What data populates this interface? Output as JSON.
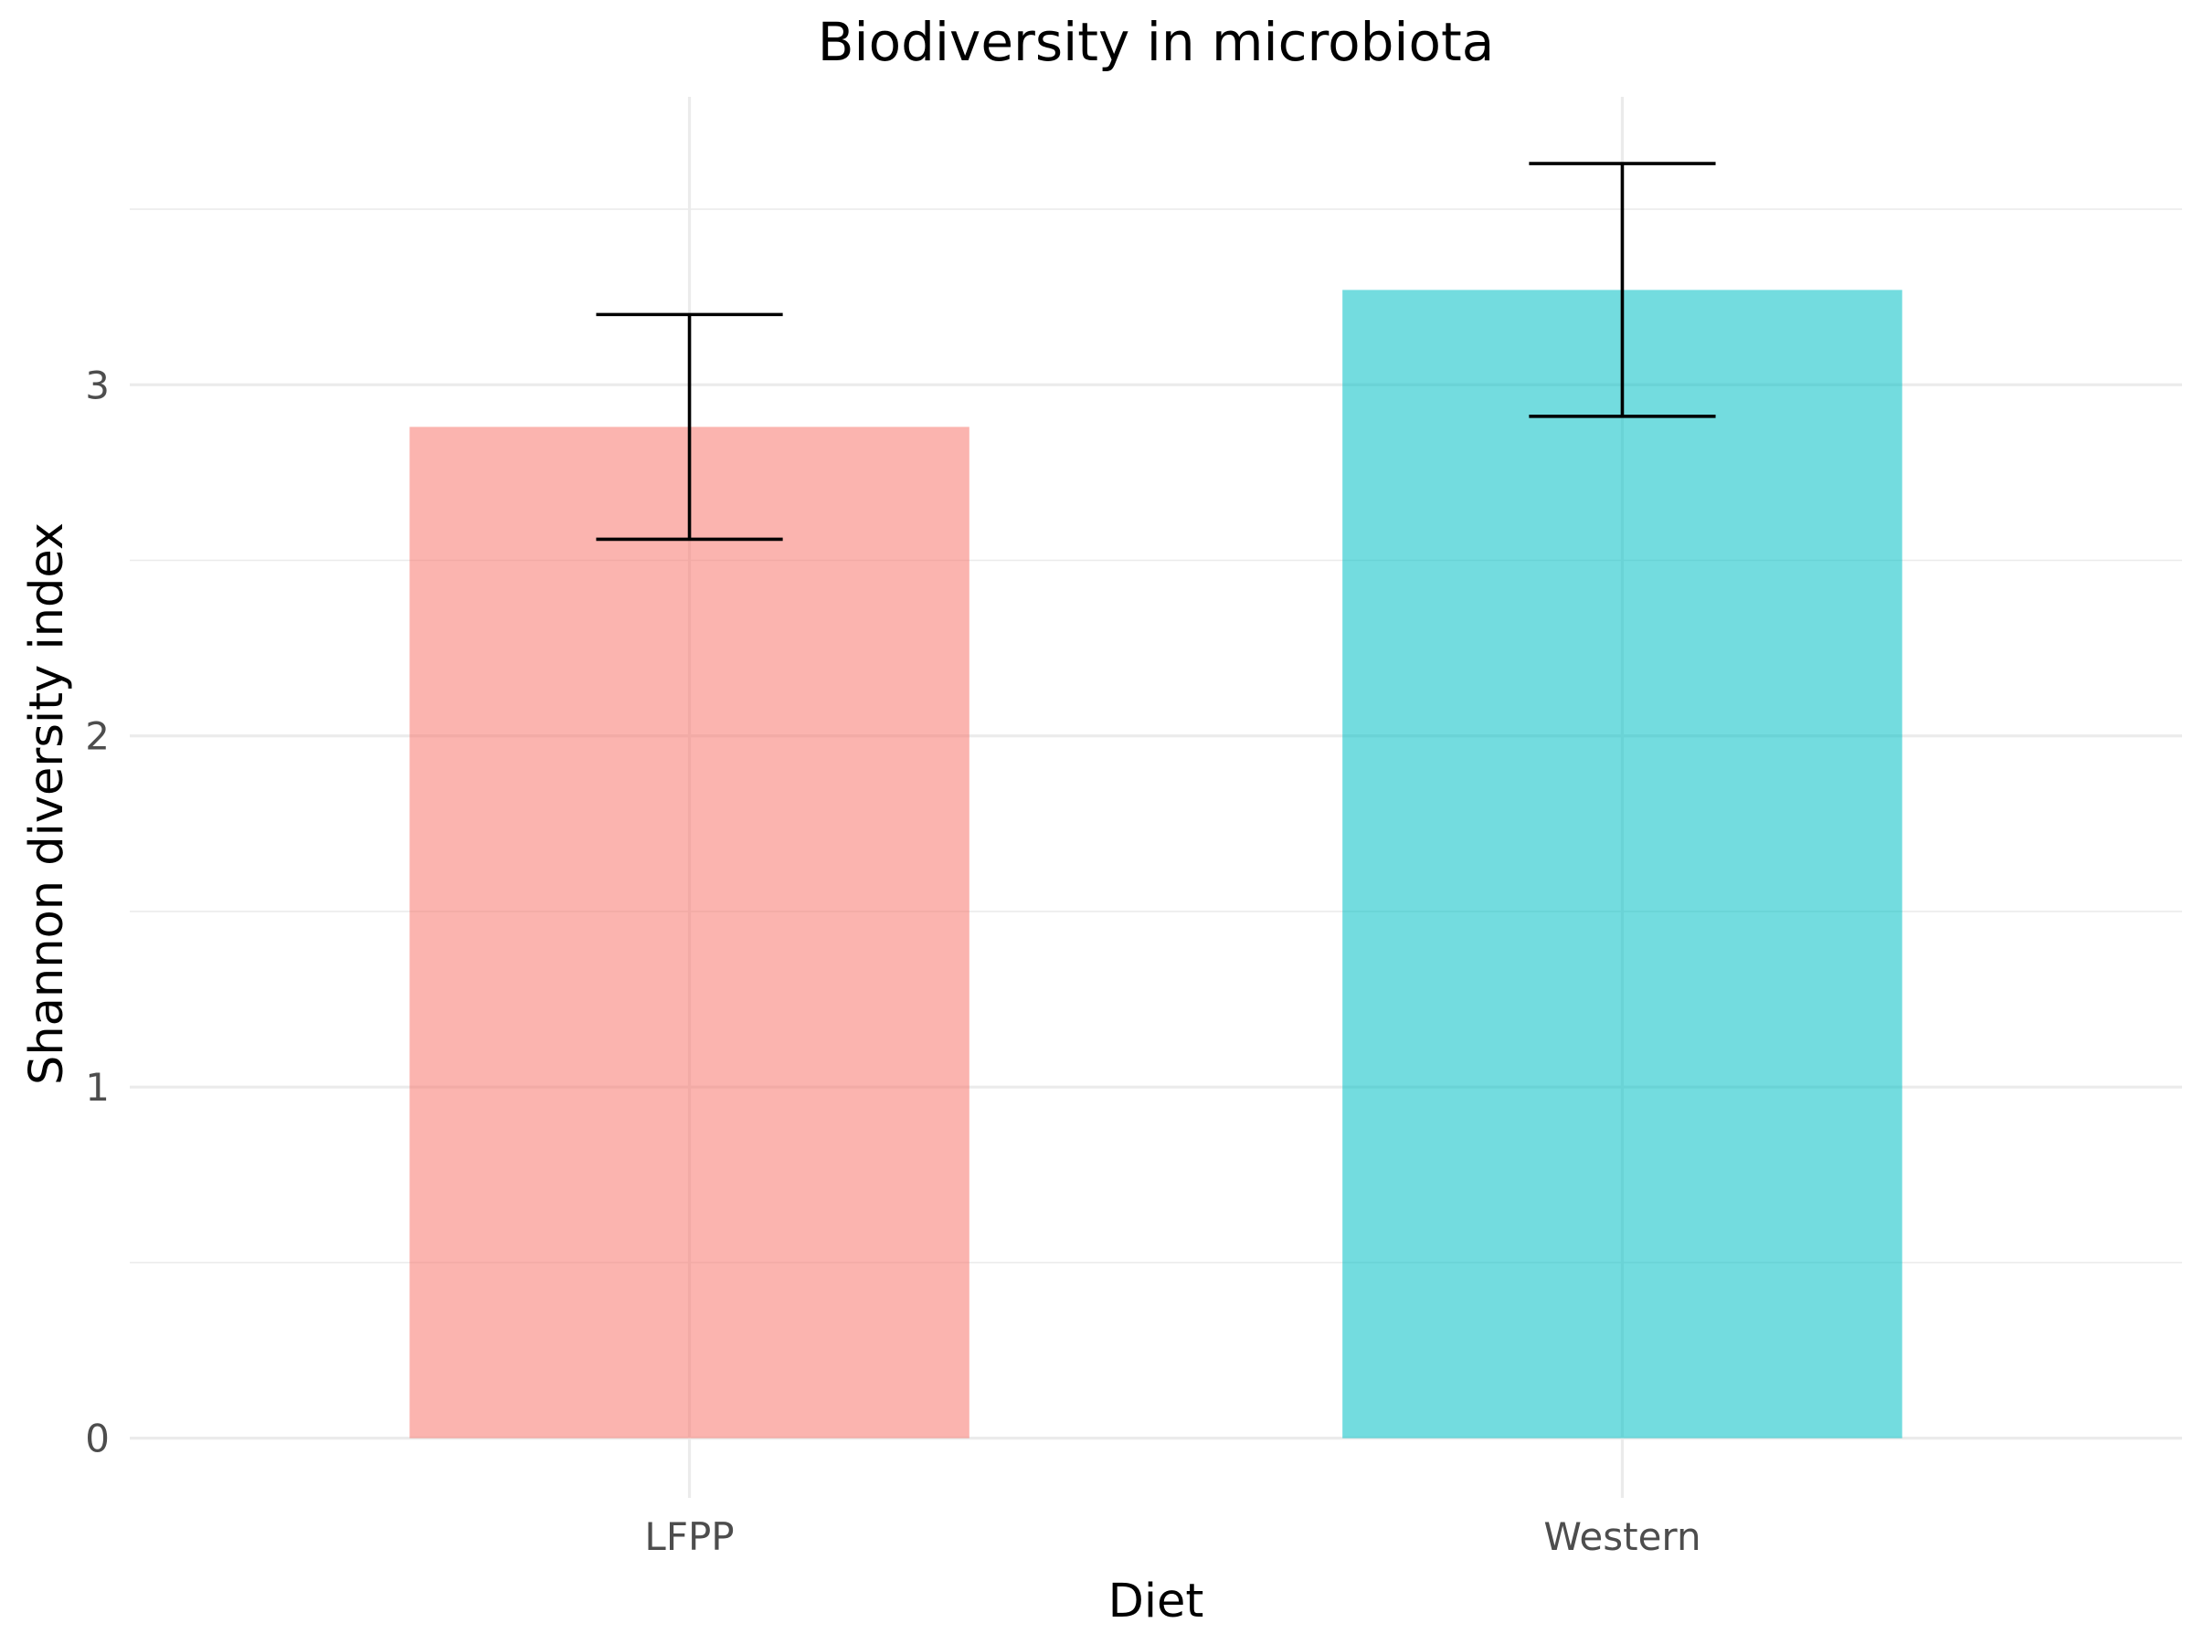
{
  "chart_data": {
    "type": "bar",
    "title": "Biodiversity in microbiota",
    "xlabel": "Diet",
    "ylabel": "Shannon diversity index",
    "categories": [
      "LFPP",
      "Western"
    ],
    "values": [
      2.88,
      3.27
    ],
    "error_low": [
      2.56,
      2.91
    ],
    "error_high": [
      3.2,
      3.63
    ],
    "colors": [
      "#F8766D",
      "#00BFC4"
    ],
    "bar_opacity": 0.55,
    "ylim": [
      -0.17,
      3.82
    ],
    "yticks": [
      0,
      1,
      2,
      3
    ],
    "ytick_labels": [
      "0",
      "1",
      "2",
      "3"
    ],
    "y_minor_ticks": [
      0.5,
      1.5,
      2.5,
      3.5
    ],
    "grid": true,
    "legend": "none"
  }
}
